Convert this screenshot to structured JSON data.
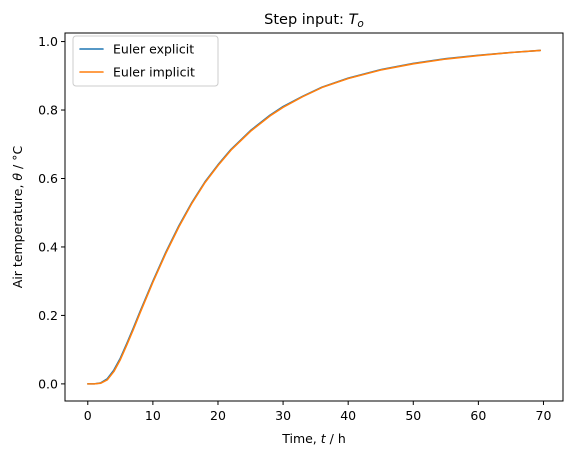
{
  "chart_data": {
    "type": "line",
    "title": "Step input: ",
    "title_math": "T",
    "title_sub": "o",
    "xlabel_pre": "Time, ",
    "xlabel_var": "t",
    "xlabel_post": " / h",
    "ylabel_pre": "Air temperature, ",
    "ylabel_var": "θ",
    "ylabel_post": " / °C",
    "xlim": [
      -3.5,
      73
    ],
    "ylim": [
      -0.05,
      1.025
    ],
    "xticks": [
      0,
      10,
      20,
      30,
      40,
      50,
      60,
      70
    ],
    "yticks": [
      0.0,
      0.2,
      0.4,
      0.6,
      0.8,
      1.0
    ],
    "xtick_labels": [
      "0",
      "10",
      "20",
      "30",
      "40",
      "50",
      "60",
      "70"
    ],
    "ytick_labels": [
      "0.0",
      "0.2",
      "0.4",
      "0.6",
      "0.8",
      "1.0"
    ],
    "legend_position": "top-left",
    "grid": false,
    "series": [
      {
        "name": "Euler explicit",
        "color": "#1f77b4",
        "x": [
          0,
          1,
          2,
          3,
          4,
          5,
          6,
          7,
          8,
          10,
          12,
          14,
          16,
          18,
          20,
          22,
          25,
          28,
          30,
          33,
          36,
          40,
          45,
          50,
          55,
          60,
          65,
          69.5
        ],
        "y": [
          0.0,
          0.0,
          0.003,
          0.015,
          0.04,
          0.075,
          0.118,
          0.163,
          0.21,
          0.3,
          0.385,
          0.462,
          0.53,
          0.59,
          0.64,
          0.685,
          0.74,
          0.785,
          0.81,
          0.84,
          0.867,
          0.893,
          0.918,
          0.936,
          0.95,
          0.96,
          0.968,
          0.974
        ]
      },
      {
        "name": "Euler implicit",
        "color": "#ff7f0e",
        "x": [
          0,
          1,
          2,
          3,
          4,
          5,
          6,
          7,
          8,
          10,
          12,
          14,
          16,
          18,
          20,
          22,
          25,
          28,
          30,
          33,
          36,
          40,
          45,
          50,
          55,
          60,
          65,
          69.5
        ],
        "y": [
          0.0,
          0.0,
          0.002,
          0.012,
          0.036,
          0.071,
          0.114,
          0.159,
          0.206,
          0.297,
          0.382,
          0.459,
          0.528,
          0.588,
          0.638,
          0.683,
          0.738,
          0.783,
          0.808,
          0.839,
          0.866,
          0.892,
          0.917,
          0.935,
          0.949,
          0.959,
          0.968,
          0.974
        ]
      }
    ]
  }
}
